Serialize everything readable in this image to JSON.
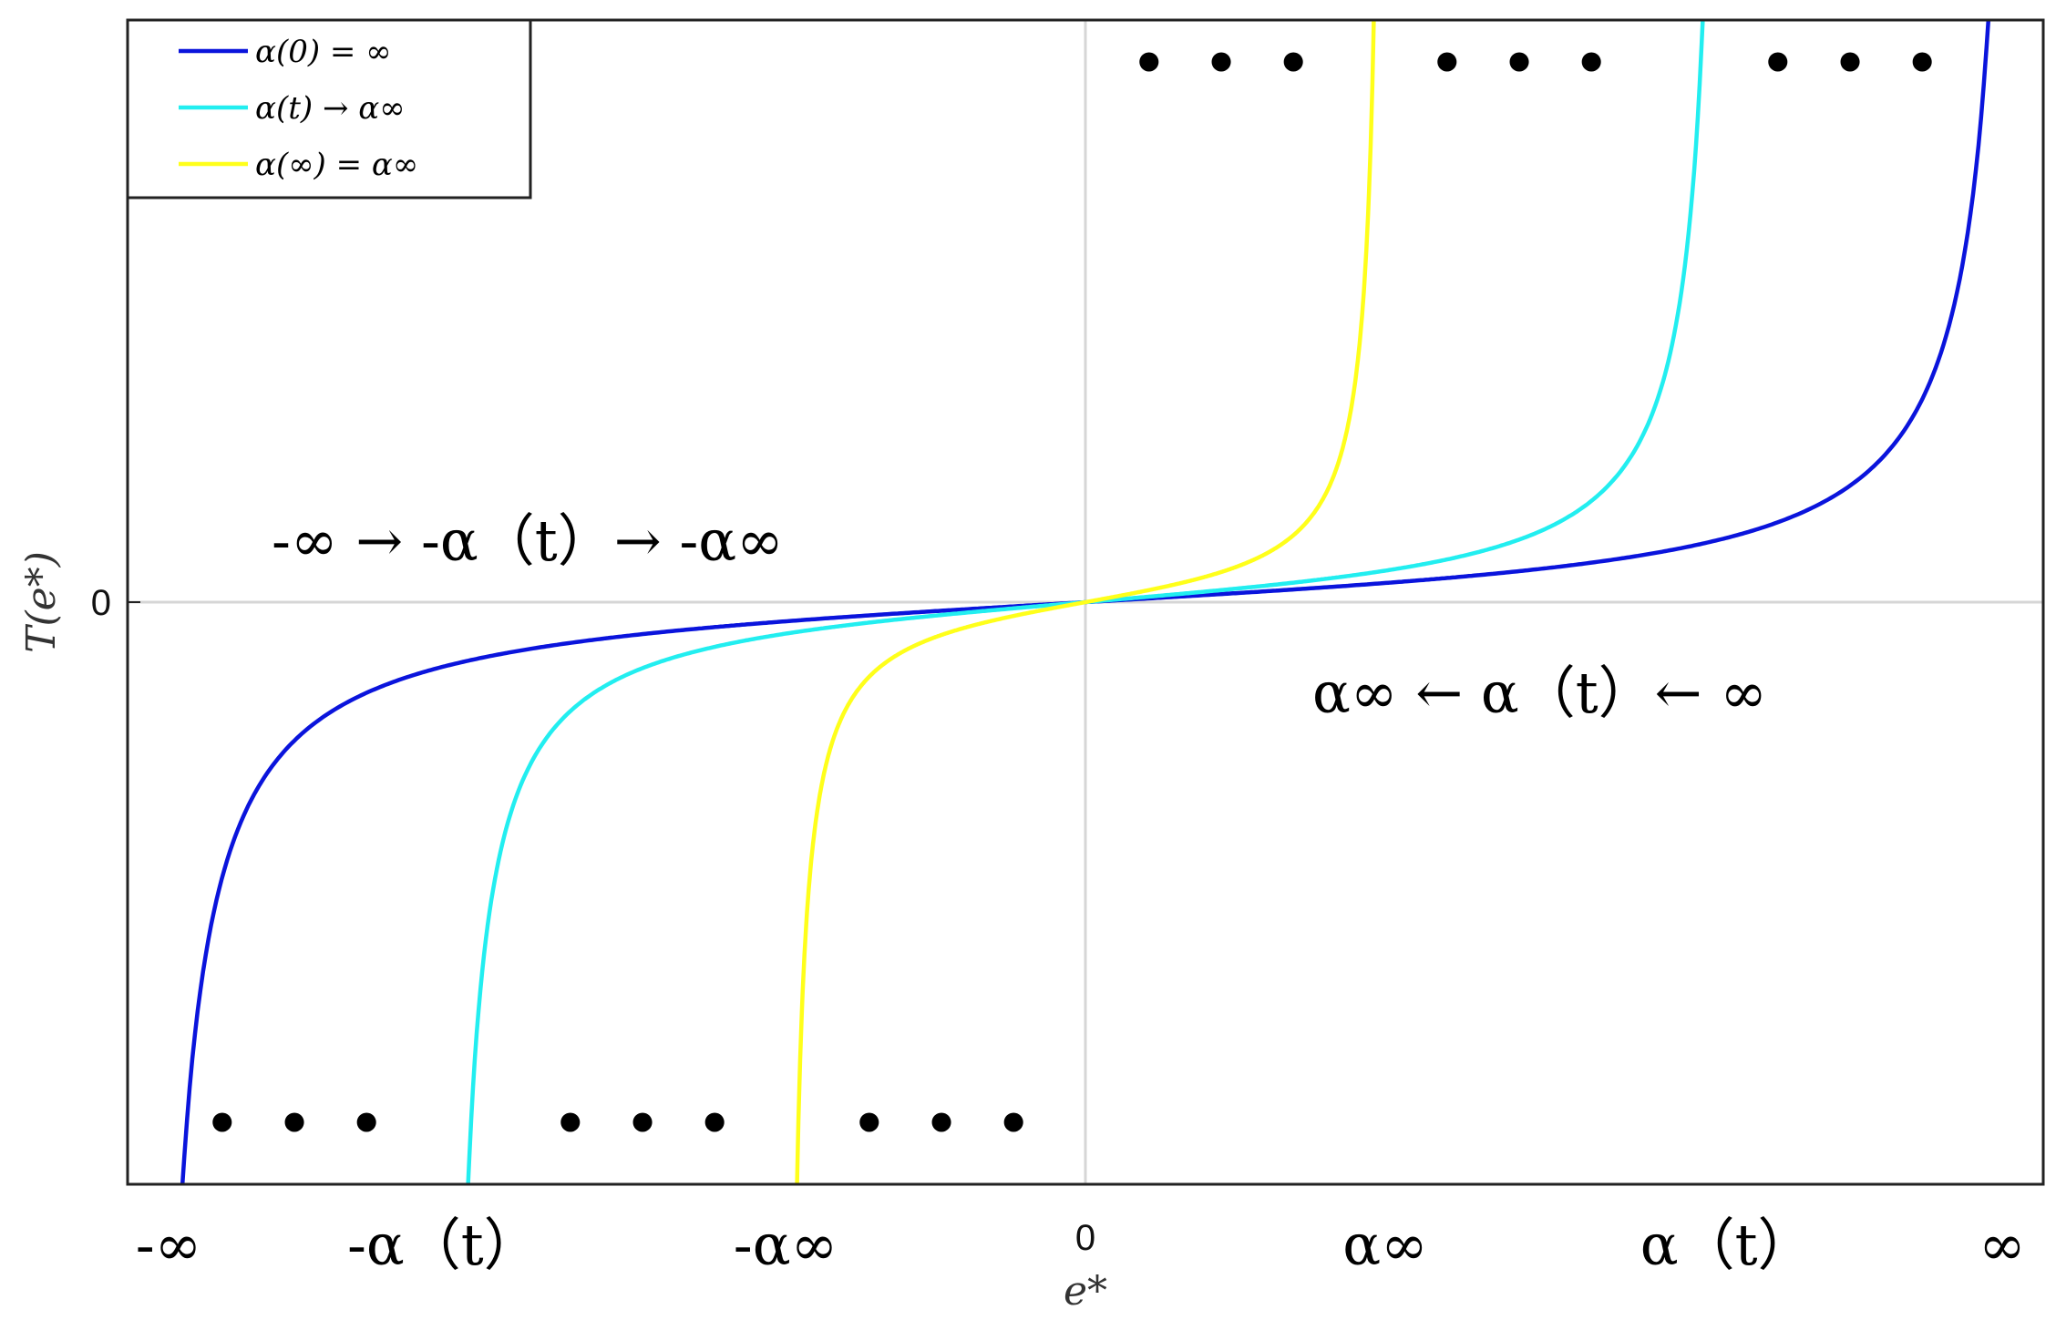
{
  "chart_data": {
    "type": "line",
    "title": "",
    "xlabel": "e*",
    "ylabel": "T(e*)",
    "grid": "zero-lines",
    "legend_position": "top-left",
    "x_tick_labels": [
      "-∞",
      "-α（t）",
      "-α∞",
      "0",
      "α∞",
      "α（t）",
      "∞"
    ],
    "x_ticks": [
      -1,
      -0.67,
      -0.313,
      0,
      0.313,
      0.67,
      1
    ],
    "y_tick_labels": [
      "0"
    ],
    "y_ticks": [
      0
    ],
    "xlim": [
      -1,
      1
    ],
    "ylim": [
      -1,
      1
    ],
    "series": [
      {
        "name": "α(0) = ∞",
        "color": "#0a14dc",
        "bound": 0.98
      },
      {
        "name": "α(t) → α∞",
        "color": "#22eef0",
        "bound": 0.67
      },
      {
        "name": "α(∞) = α∞",
        "color": "#ffff1a",
        "bound": 0.313
      }
    ],
    "annotations": {
      "left": "-∞ → -α（t）→ -α∞",
      "right": "α∞ ← α（t）← ∞",
      "ellipsis": "• • •"
    }
  }
}
